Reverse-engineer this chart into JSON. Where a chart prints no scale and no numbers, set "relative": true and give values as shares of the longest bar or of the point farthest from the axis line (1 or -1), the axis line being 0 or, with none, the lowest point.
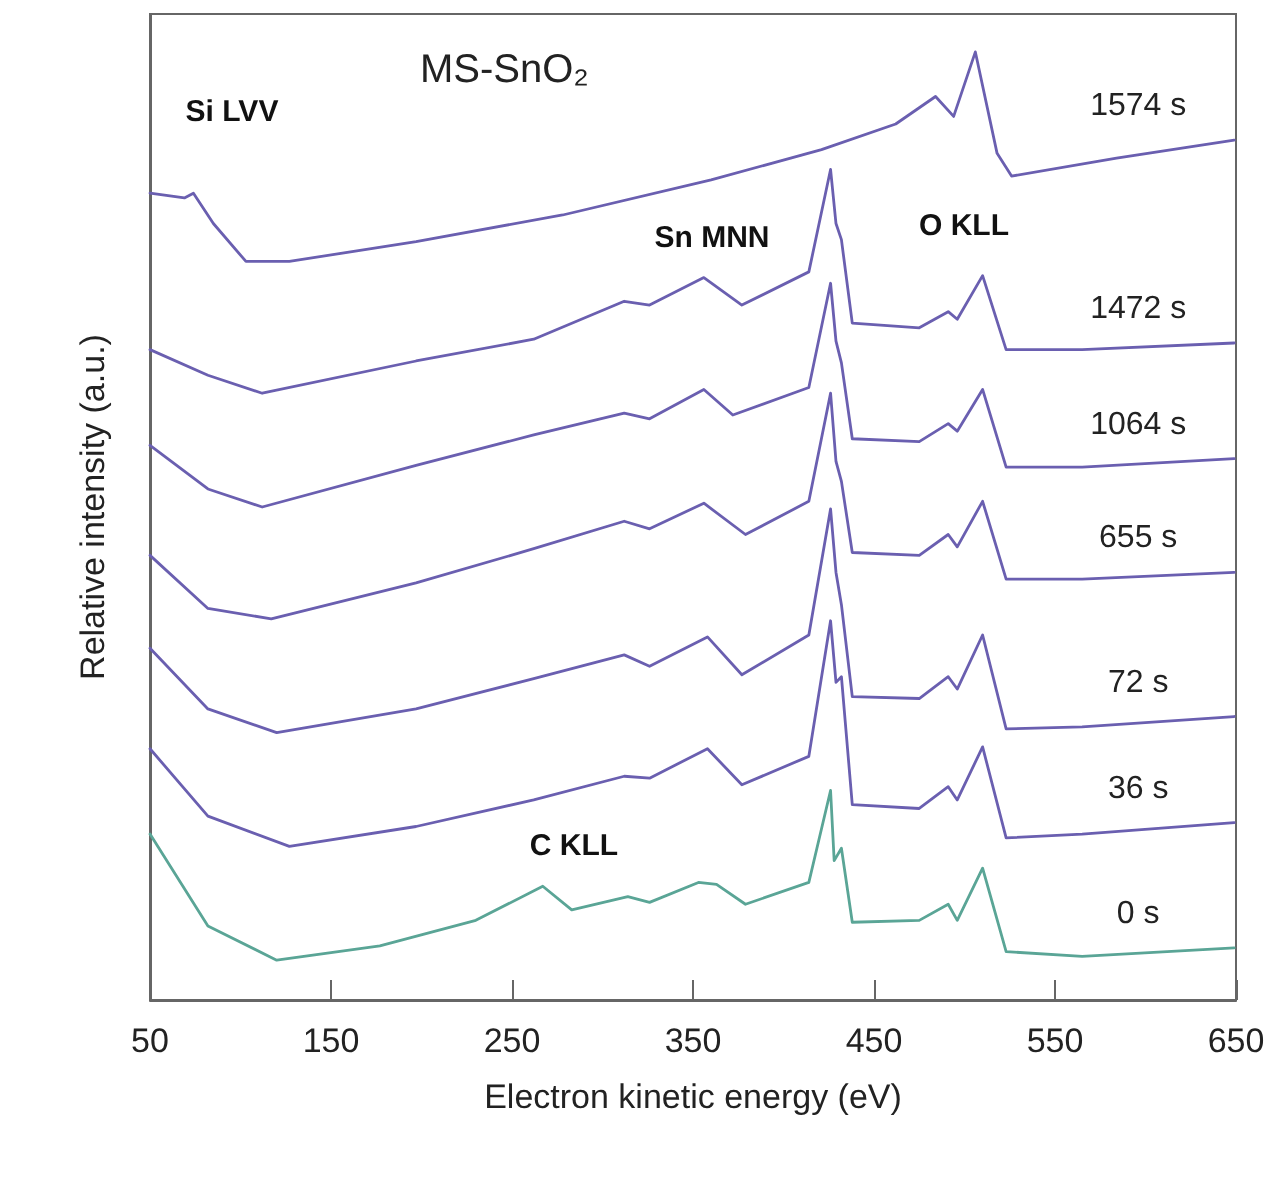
{
  "chart_data": {
    "type": "line",
    "title": "MS-SnO₂",
    "xlabel": "Electron kinetic energy (eV)",
    "ylabel": "Relative intensity (a.u.)",
    "relative": true,
    "xlim": [
      50,
      650
    ],
    "xticks": [
      50,
      150,
      250,
      350,
      450,
      550,
      650
    ],
    "grid": false,
    "legend": false,
    "marker": "none",
    "line_style": "solid",
    "annotations": [
      "Si LVV",
      "Sn MNN",
      "O KLL",
      "C KLL"
    ],
    "series": [
      {
        "name": "1574 s",
        "color": "#6a5fb0",
        "x": [
          50,
          69,
          74,
          85,
          103,
          127,
          197,
          278,
          360,
          421,
          462,
          484,
          494,
          506,
          518,
          526,
          584,
          649
        ],
        "values": [
          0.851,
          0.846,
          0.851,
          0.819,
          0.779,
          0.779,
          0.8,
          0.828,
          0.865,
          0.897,
          0.924,
          0.953,
          0.932,
          1.0,
          0.893,
          0.869,
          0.888,
          0.907
        ]
      },
      {
        "name": "1472 s",
        "color": "#6a5fb0",
        "x": [
          50,
          82,
          112,
          197,
          262,
          312,
          326,
          356,
          377,
          414,
          426,
          429,
          432,
          438,
          475,
          491,
          496,
          510,
          523,
          565,
          649
        ],
        "values": [
          0.686,
          0.659,
          0.64,
          0.674,
          0.697,
          0.737,
          0.733,
          0.762,
          0.733,
          0.768,
          0.876,
          0.819,
          0.802,
          0.714,
          0.709,
          0.726,
          0.718,
          0.764,
          0.686,
          0.686,
          0.693
        ]
      },
      {
        "name": "1064 s",
        "color": "#6a5fb0",
        "x": [
          50,
          82,
          112,
          197,
          262,
          312,
          326,
          356,
          372,
          414,
          426,
          429,
          432,
          438,
          475,
          491,
          496,
          510,
          523,
          565,
          649
        ],
        "values": [
          0.585,
          0.539,
          0.52,
          0.564,
          0.596,
          0.619,
          0.613,
          0.644,
          0.617,
          0.646,
          0.756,
          0.695,
          0.672,
          0.592,
          0.589,
          0.608,
          0.6,
          0.644,
          0.562,
          0.562,
          0.571
        ]
      },
      {
        "name": "655 s",
        "color": "#6a5fb0",
        "x": [
          50,
          82,
          117,
          197,
          262,
          312,
          326,
          356,
          379,
          414,
          426,
          429,
          432,
          438,
          475,
          491,
          496,
          510,
          523,
          565,
          649
        ],
        "values": [
          0.469,
          0.413,
          0.402,
          0.44,
          0.476,
          0.505,
          0.497,
          0.524,
          0.491,
          0.526,
          0.64,
          0.568,
          0.547,
          0.472,
          0.469,
          0.491,
          0.478,
          0.526,
          0.444,
          0.444,
          0.451
        ]
      },
      {
        "name": "72 s",
        "color": "#6a5fb0",
        "x": [
          50,
          82,
          120,
          197,
          262,
          312,
          326,
          358,
          377,
          414,
          426,
          429,
          432,
          438,
          475,
          491,
          496,
          510,
          523,
          565,
          649
        ],
        "values": [
          0.371,
          0.307,
          0.282,
          0.307,
          0.339,
          0.364,
          0.352,
          0.383,
          0.343,
          0.385,
          0.518,
          0.451,
          0.417,
          0.32,
          0.318,
          0.341,
          0.328,
          0.385,
          0.286,
          0.288,
          0.299
        ]
      },
      {
        "name": "36 s",
        "color": "#6a5fb0",
        "x": [
          50,
          82,
          127,
          197,
          262,
          312,
          326,
          358,
          377,
          414,
          426,
          429,
          432,
          438,
          475,
          491,
          496,
          510,
          523,
          565,
          649
        ],
        "values": [
          0.265,
          0.194,
          0.162,
          0.183,
          0.211,
          0.236,
          0.234,
          0.265,
          0.227,
          0.257,
          0.4,
          0.335,
          0.341,
          0.206,
          0.202,
          0.225,
          0.211,
          0.267,
          0.171,
          0.175,
          0.187
        ]
      },
      {
        "name": "0 s",
        "color": "#5aa596",
        "x": [
          50,
          82,
          120,
          177,
          230,
          267,
          283,
          314,
          326,
          353,
          363,
          379,
          414,
          426,
          428,
          432,
          438,
          475,
          491,
          496,
          510,
          523,
          565,
          649
        ],
        "values": [
          0.175,
          0.078,
          0.042,
          0.057,
          0.084,
          0.12,
          0.095,
          0.109,
          0.103,
          0.124,
          0.122,
          0.101,
          0.124,
          0.221,
          0.147,
          0.16,
          0.082,
          0.084,
          0.101,
          0.084,
          0.139,
          0.051,
          0.046,
          0.055
        ]
      }
    ]
  }
}
